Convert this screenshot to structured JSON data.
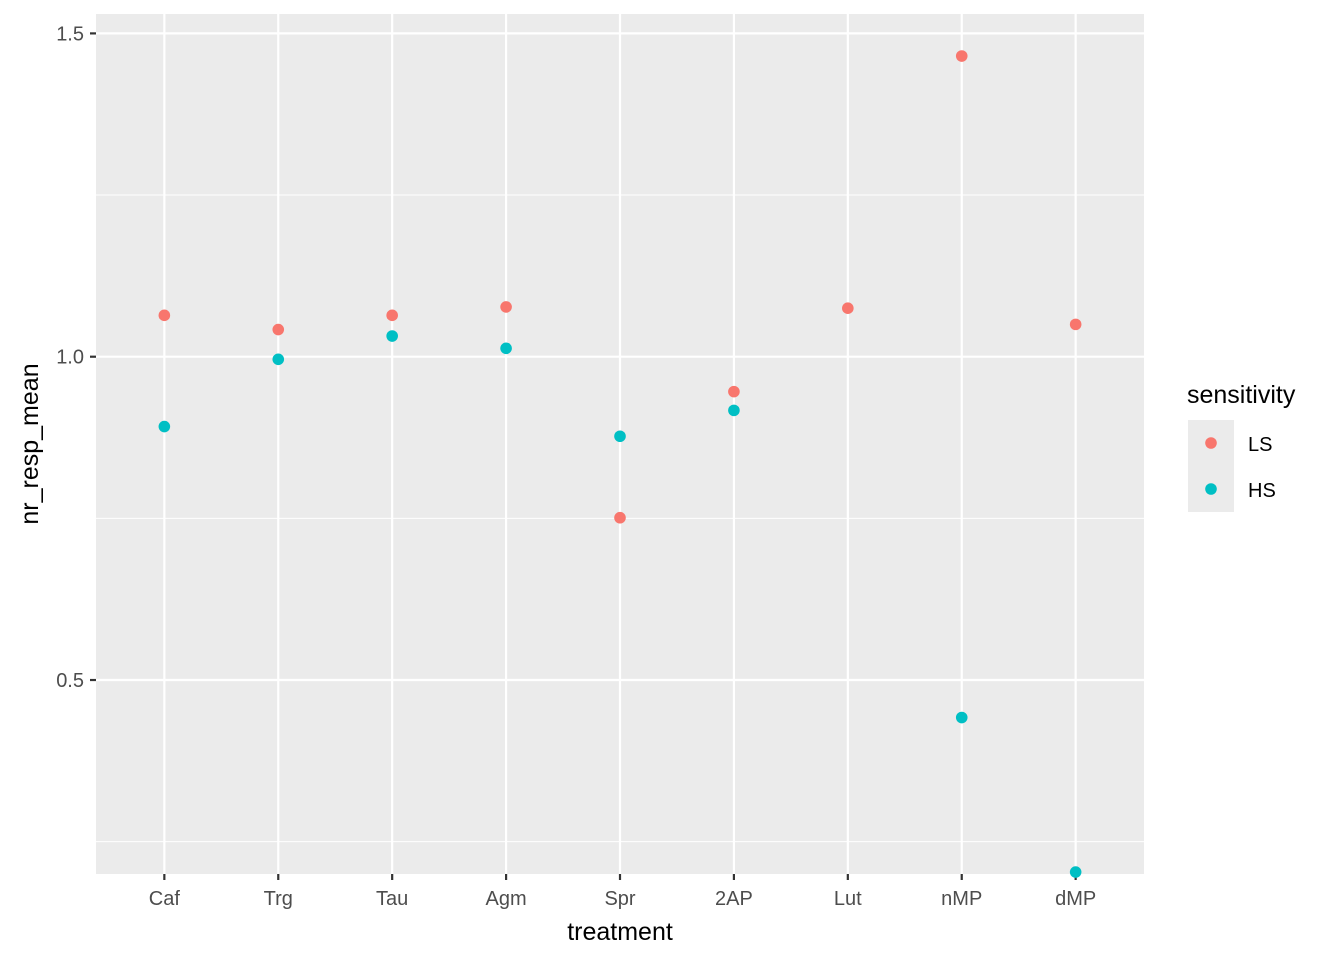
{
  "chart_data": {
    "type": "scatter",
    "title": "",
    "xlabel": "treatment",
    "ylabel": "nr_resp_mean",
    "categories": [
      "Caf",
      "Trg",
      "Tau",
      "Agm",
      "Spr",
      "2AP",
      "Lut",
      "nMP",
      "dMP"
    ],
    "ylim": [
      0.2,
      1.53
    ],
    "y_ticks": [
      0.5,
      1.0,
      1.5
    ],
    "y_tick_labels": [
      "0.5",
      "1.0",
      "1.5"
    ],
    "grid": true,
    "legend": {
      "title": "sensitivity",
      "position": "right"
    },
    "series": [
      {
        "name": "LS",
        "color": "#F8766D",
        "values": [
          1.064,
          1.042,
          1.064,
          1.077,
          0.751,
          0.946,
          1.075,
          1.465,
          1.05
        ]
      },
      {
        "name": "HS",
        "color": "#00BFC4",
        "values": [
          0.892,
          0.996,
          1.032,
          1.013,
          0.877,
          0.917,
          null,
          0.442,
          0.203
        ]
      }
    ]
  }
}
